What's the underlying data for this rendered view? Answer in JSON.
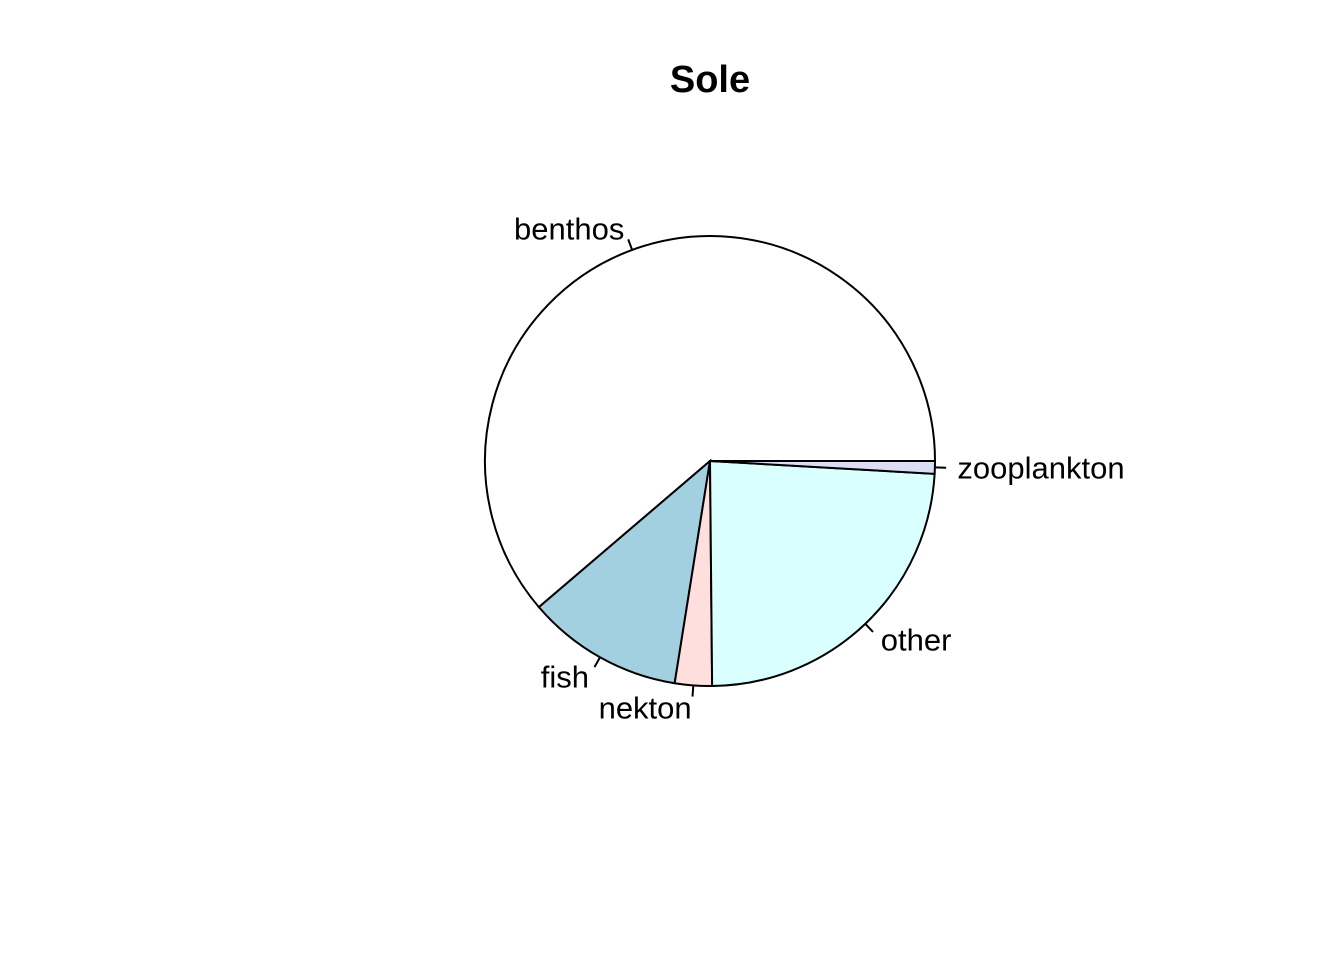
{
  "chart_data": {
    "type": "pie",
    "title": "Sole",
    "start_angle_deg": 0,
    "direction": "counterclockwise",
    "slices": [
      {
        "label": "benthos",
        "value": 0.6125,
        "color": "#ffffff"
      },
      {
        "label": "fish",
        "value": 0.1124,
        "color": "#a2d0e0"
      },
      {
        "label": "nekton",
        "value": 0.0266,
        "color": "#ffdede"
      },
      {
        "label": "other",
        "value": 0.2394,
        "color": "#d9ffff"
      },
      {
        "label": "zooplankton",
        "value": 0.0091,
        "color": "#dcdcf5"
      }
    ]
  }
}
